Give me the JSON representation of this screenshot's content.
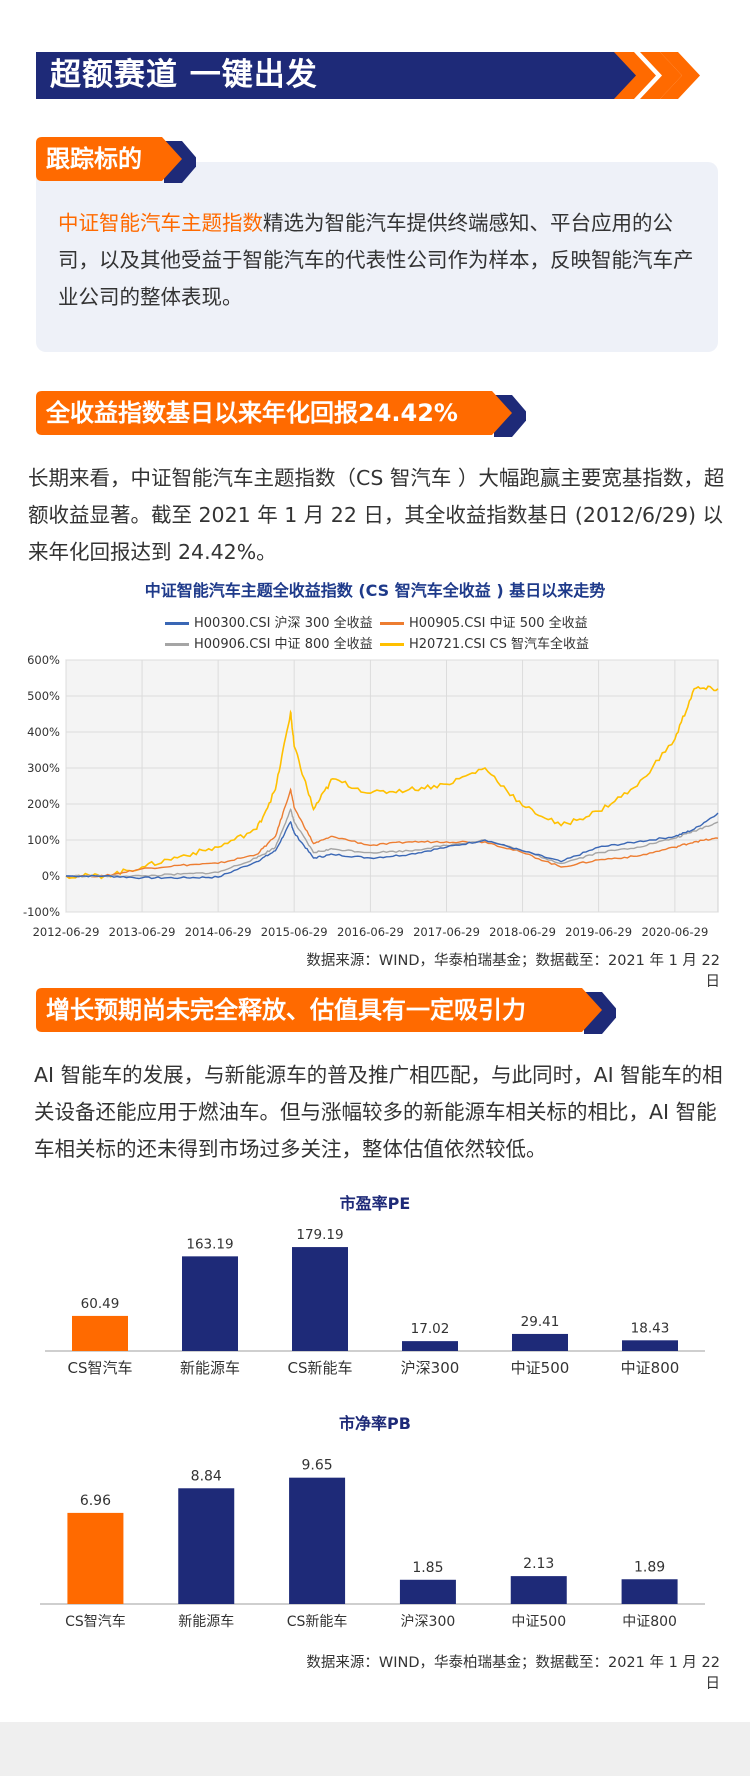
{
  "banner": {
    "title": "超额赛道 一键出发"
  },
  "section1": {
    "tag": "跟踪标的",
    "highlight": "中证智能汽车主题指数",
    "text": "精选为智能汽车提供终端感知、平台应用的公司，以及其他受益于智能汽车的代表性公司作为样本，反映智能汽车产业公司的整体表现。"
  },
  "section2": {
    "tag": "全收益指数基日以来年化回报24.42%",
    "text": "长期来看，中证智能汽车主题指数（CS 智汽车 ）大幅跑赢主要宽基指数，超额收益显著。截至 2021 年 1 月 22 日，其全收益指数基日 (2012/6/29) 以来年化回报达到 24.42%。"
  },
  "section3": {
    "tag": "增长预期尚未完全释放、估值具有一定吸引力",
    "text": "AI 智能车的发展，与新能源车的普及推广相匹配，与此同时，AI 智能车的相关设备还能应用于燃油车。但与涨幅较多的新能源车相关标的相比，AI 智能车相关标的还未得到市场过多关注，整体估值依然较低。"
  },
  "source_line": "数据来源：WIND，华泰柏瑞基金；数据截至：2021 年 1 月 22 日",
  "colors": {
    "navy": "#1e2a78",
    "orange": "#ff6a00",
    "blue_series": "#3a67b5",
    "orange_series": "#ed7d31",
    "gray_series": "#a5a5a5",
    "gold_series": "#ffc000"
  },
  "chart_data": [
    {
      "type": "line",
      "title": "中证智能汽车主题全收益指数 (CS 智汽车全收益 ) 基日以来走势",
      "x": [
        "2012-06-29",
        "2012-12-31",
        "2013-06-29",
        "2013-12-31",
        "2014-06-29",
        "2014-12-31",
        "2015-03-31",
        "2015-06-12",
        "2015-06-29",
        "2015-09-30",
        "2015-12-31",
        "2016-06-29",
        "2016-12-31",
        "2017-06-29",
        "2017-12-31",
        "2018-06-29",
        "2018-12-31",
        "2019-06-29",
        "2019-12-31",
        "2020-06-29",
        "2020-09-30",
        "2021-01-22"
      ],
      "xticks": [
        "2012-06-29",
        "2013-06-29",
        "2014-06-29",
        "2015-06-29",
        "2016-06-29",
        "2017-06-29",
        "2018-06-29",
        "2019-06-29",
        "2020-06-29"
      ],
      "yticks": [
        "600%",
        "500%",
        "400%",
        "300%",
        "200%",
        "100%",
        "0%",
        "-100%"
      ],
      "ylim": [
        -100,
        600
      ],
      "grid": true,
      "legend": "top",
      "series": [
        {
          "name": "H00300.CSI 沪深 300 全收益",
          "values": [
            0,
            0,
            -5,
            -5,
            -3,
            40,
            70,
            150,
            120,
            50,
            60,
            50,
            60,
            80,
            100,
            70,
            40,
            80,
            95,
            110,
            130,
            175
          ]
        },
        {
          "name": "H00905.CSI 中证 500 全收益",
          "values": [
            0,
            0,
            20,
            30,
            35,
            60,
            110,
            240,
            190,
            90,
            110,
            85,
            95,
            95,
            95,
            65,
            25,
            45,
            55,
            80,
            95,
            105
          ]
        },
        {
          "name": "H00906.CSI 中证 800 全收益",
          "values": [
            0,
            0,
            0,
            5,
            10,
            50,
            80,
            185,
            150,
            65,
            75,
            65,
            70,
            85,
            100,
            70,
            35,
            65,
            80,
            105,
            125,
            150
          ]
        },
        {
          "name": "H20721.CSI CS 智汽车全收益",
          "values": [
            0,
            0,
            25,
            55,
            80,
            130,
            240,
            455,
            360,
            185,
            270,
            230,
            240,
            255,
            300,
            195,
            140,
            180,
            250,
            380,
            520,
            520
          ]
        }
      ]
    },
    {
      "type": "bar",
      "title": "市盈率PE",
      "categories": [
        "CS智汽车",
        "新能源车",
        "CS新能车",
        "沪深300",
        "中证500",
        "中证800"
      ],
      "values": [
        60.49,
        163.19,
        179.19,
        17.02,
        29.41,
        18.43
      ],
      "value_labels": [
        "60.49",
        "163.19",
        "179.19",
        "17.02",
        "29.41",
        "18.43"
      ],
      "ylim": [
        0,
        200
      ]
    },
    {
      "type": "bar",
      "title": "市净率PB",
      "categories": [
        "CS智汽车",
        "新能源车",
        "CS新能车",
        "沪深300",
        "中证500",
        "中证800"
      ],
      "values": [
        6.96,
        8.84,
        9.65,
        1.85,
        2.13,
        1.89
      ],
      "value_labels": [
        "6.96",
        "8.84",
        "9.65",
        "1.85",
        "2.13",
        "1.89"
      ],
      "ylim": [
        0,
        11
      ]
    }
  ]
}
